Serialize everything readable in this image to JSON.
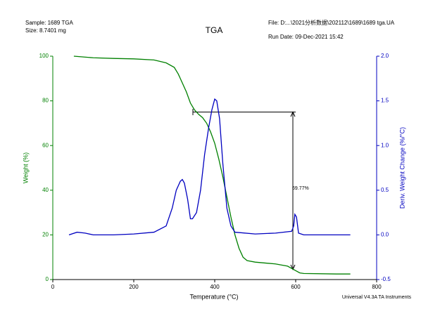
{
  "chart_data": {
    "type": "line",
    "title": "TGA",
    "sample": "Sample: 1689 TGA",
    "size": "Size:  8.7401 mg",
    "file": "File: D:...\\2021分析数据\\202112\\1689\\1689 tga.UA",
    "run_date": "Run Date: 09-Dec-2021 15:42",
    "footer": "Universal V4.3A TA Instruments",
    "xlabel": "Temperature (°C)",
    "ylabel": "Weight (%)",
    "y2label": "Deriv. Weight Change (%/°C)",
    "annotation": "69.77%",
    "xlim": [
      0,
      800
    ],
    "xticks": [
      0,
      200,
      400,
      600,
      800
    ],
    "ylim": [
      0,
      100
    ],
    "yticks": [
      0,
      20,
      40,
      60,
      80,
      100
    ],
    "y2lim": [
      -0.5,
      2.0
    ],
    "y2ticks": [
      -0.5,
      {
        "value": 0,
        "label": "0.0"
      },
      0.5,
      {
        "value": 1,
        "label": "1.0"
      },
      1.5,
      {
        "value": 2,
        "label": "2.0"
      }
    ],
    "series": [
      {
        "color": "#008000",
        "axis": "y",
        "x": [
          52,
          100,
          150,
          200,
          250,
          280,
          300,
          310,
          320,
          330,
          340,
          350,
          360,
          370,
          380,
          390,
          400,
          410,
          420,
          430,
          440,
          450,
          460,
          470,
          480,
          500,
          550,
          580,
          600,
          610,
          620,
          700,
          735
        ],
        "values": [
          100,
          99.3,
          99,
          98.8,
          98.3,
          97,
          95,
          92,
          88,
          84,
          79,
          76,
          74,
          72.5,
          70,
          66,
          61,
          54,
          46,
          37,
          28,
          20,
          14,
          10,
          8.5,
          7.8,
          7,
          6,
          4,
          3,
          2.7,
          2.5,
          2.5
        ]
      },
      {
        "color": "#0000c0",
        "axis": "y2",
        "x": [
          40,
          60,
          80,
          100,
          150,
          200,
          250,
          280,
          295,
          305,
          315,
          320,
          325,
          333,
          340,
          345,
          355,
          365,
          375,
          385,
          393,
          400,
          405,
          412,
          420,
          430,
          440,
          450,
          500,
          550,
          590,
          595,
          598,
          602,
          607,
          620,
          700,
          735
        ],
        "values": [
          0,
          0.03,
          0.02,
          0,
          0,
          0.01,
          0.03,
          0.1,
          0.3,
          0.5,
          0.6,
          0.62,
          0.58,
          0.4,
          0.18,
          0.18,
          0.25,
          0.5,
          0.9,
          1.2,
          1.4,
          1.52,
          1.5,
          1.3,
          0.8,
          0.3,
          0.1,
          0.03,
          0.01,
          0.02,
          0.04,
          0.1,
          0.23,
          0.2,
          0.02,
          0,
          0,
          0
        ]
      }
    ]
  }
}
